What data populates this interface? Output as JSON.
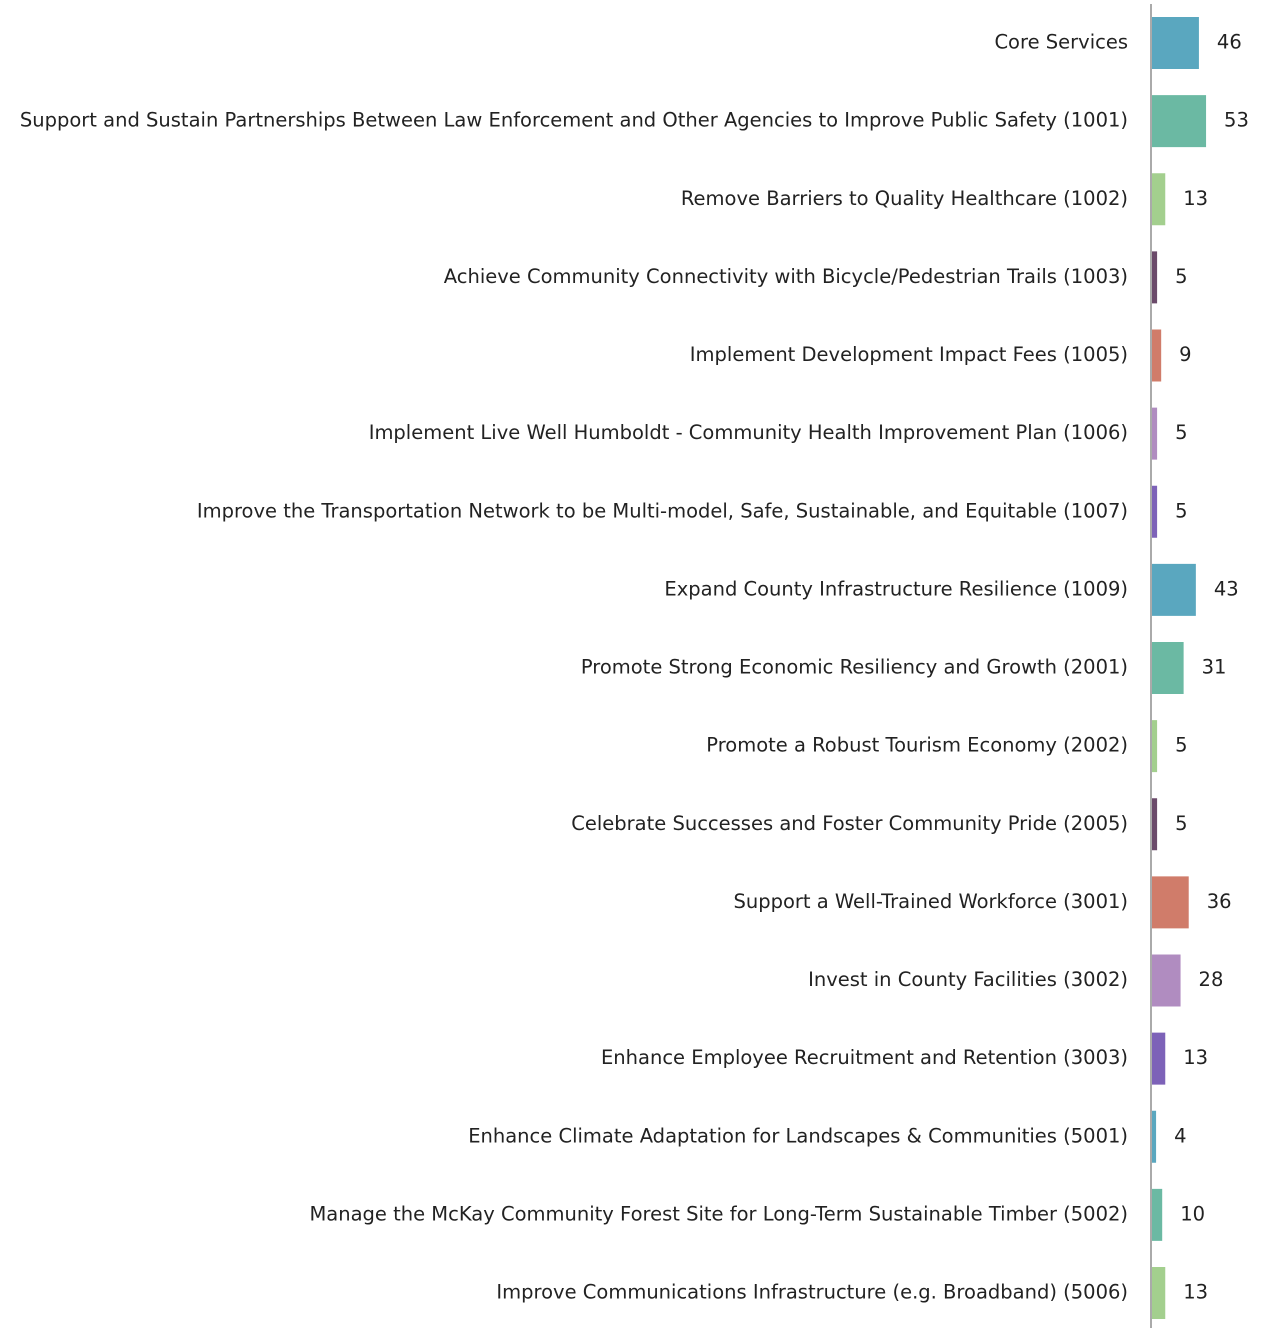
{
  "chart_data": {
    "type": "bar",
    "orientation": "horizontal",
    "categories": [
      "Core Services",
      "Support and Sustain Partnerships Between Law Enforcement and Other Agencies to Improve Public Safety (1001)",
      "Remove Barriers to Quality Healthcare (1002)",
      "Achieve Community Connectivity with Bicycle/Pedestrian Trails (1003)",
      "Implement Development Impact Fees (1005)",
      "Implement Live Well Humboldt - Community Health Improvement Plan (1006)",
      "Improve the Transportation Network to be Multi-model, Safe, Sustainable, and Equitable (1007)",
      "Expand County Infrastructure Resilience (1009)",
      "Promote Strong Economic Resiliency and Growth (2001)",
      "Promote a Robust Tourism Economy (2002)",
      "Celebrate Successes and Foster Community Pride (2005)",
      "Support a Well-Trained Workforce (3001)",
      "Invest in County Facilities (3002)",
      "Enhance Employee Recruitment and Retention (3003)",
      "Enhance Climate Adaptation for Landscapes & Communities (5001)",
      "Manage the McKay Community Forest Site for Long-Term Sustainable Timber (5002)",
      "Improve Communications Infrastructure (e.g. Broadband) (5006)"
    ],
    "values": [
      46,
      53,
      13,
      5,
      9,
      5,
      5,
      43,
      31,
      5,
      5,
      36,
      28,
      13,
      4,
      10,
      13
    ],
    "colors": [
      "#5aa7bf",
      "#6bb9a3",
      "#a3cf8e",
      "#6b4a6a",
      "#d07c6a",
      "#b08cc0",
      "#7d62b8"
    ]
  }
}
